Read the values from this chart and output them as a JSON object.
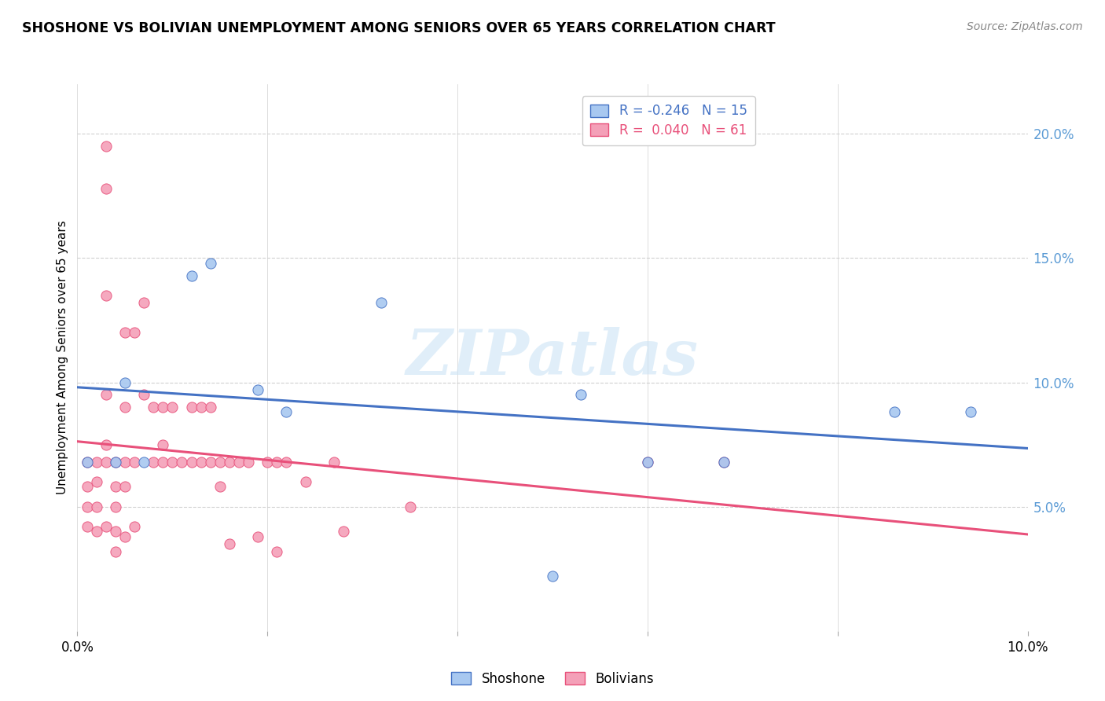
{
  "title": "SHOSHONE VS BOLIVIAN UNEMPLOYMENT AMONG SENIORS OVER 65 YEARS CORRELATION CHART",
  "source": "Source: ZipAtlas.com",
  "ylabel": "Unemployment Among Seniors over 65 years",
  "xlim": [
    0.0,
    0.1
  ],
  "ylim": [
    0.0,
    0.22
  ],
  "y_ticks_right": [
    0.05,
    0.1,
    0.15,
    0.2
  ],
  "y_tick_labels_right": [
    "5.0%",
    "10.0%",
    "15.0%",
    "20.0%"
  ],
  "shoshone_R": -0.246,
  "shoshone_N": 15,
  "bolivian_R": 0.04,
  "bolivian_N": 61,
  "shoshone_color": "#a8c8f0",
  "bolivian_color": "#f4a0b8",
  "shoshone_line_color": "#4472c4",
  "bolivian_line_color": "#e8507a",
  "watermark_text": "ZIPatlas",
  "shoshone_x": [
    0.001,
    0.004,
    0.005,
    0.007,
    0.012,
    0.014,
    0.019,
    0.022,
    0.032,
    0.05,
    0.053,
    0.06,
    0.068,
    0.086,
    0.094
  ],
  "shoshone_y": [
    0.068,
    0.068,
    0.1,
    0.068,
    0.143,
    0.148,
    0.097,
    0.088,
    0.132,
    0.022,
    0.095,
    0.068,
    0.068,
    0.088,
    0.088
  ],
  "bolivian_x": [
    0.001,
    0.001,
    0.001,
    0.001,
    0.002,
    0.002,
    0.002,
    0.002,
    0.003,
    0.003,
    0.003,
    0.003,
    0.003,
    0.003,
    0.003,
    0.004,
    0.004,
    0.004,
    0.004,
    0.004,
    0.005,
    0.005,
    0.005,
    0.005,
    0.005,
    0.006,
    0.006,
    0.006,
    0.007,
    0.007,
    0.008,
    0.008,
    0.009,
    0.009,
    0.009,
    0.01,
    0.01,
    0.011,
    0.012,
    0.012,
    0.013,
    0.013,
    0.014,
    0.014,
    0.015,
    0.015,
    0.016,
    0.016,
    0.017,
    0.018,
    0.019,
    0.02,
    0.021,
    0.021,
    0.022,
    0.024,
    0.027,
    0.028,
    0.035,
    0.06,
    0.068
  ],
  "bolivian_y": [
    0.068,
    0.058,
    0.05,
    0.042,
    0.068,
    0.06,
    0.05,
    0.04,
    0.195,
    0.178,
    0.135,
    0.095,
    0.075,
    0.068,
    0.042,
    0.068,
    0.058,
    0.05,
    0.04,
    0.032,
    0.12,
    0.09,
    0.068,
    0.058,
    0.038,
    0.12,
    0.068,
    0.042,
    0.132,
    0.095,
    0.09,
    0.068,
    0.09,
    0.075,
    0.068,
    0.09,
    0.068,
    0.068,
    0.09,
    0.068,
    0.09,
    0.068,
    0.09,
    0.068,
    0.068,
    0.058,
    0.068,
    0.035,
    0.068,
    0.068,
    0.038,
    0.068,
    0.068,
    0.032,
    0.068,
    0.06,
    0.068,
    0.04,
    0.05,
    0.068,
    0.068
  ]
}
